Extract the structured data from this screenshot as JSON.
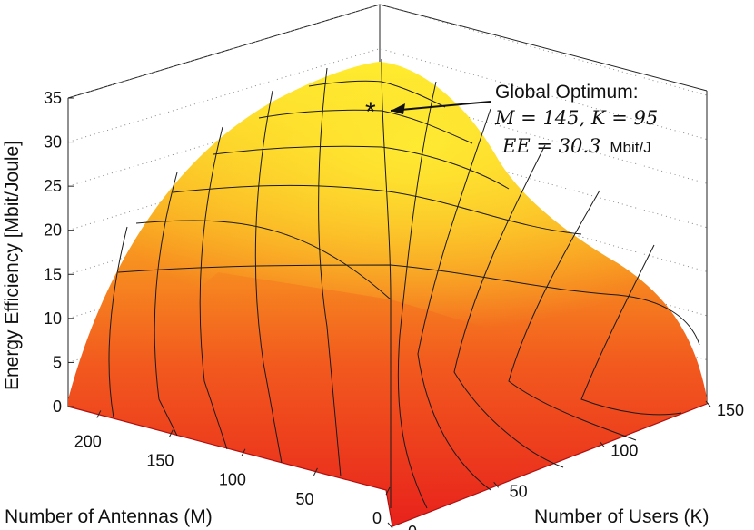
{
  "chart_data": {
    "type": "surface",
    "title": "",
    "xlabel": "Number of Users (K)",
    "ylabel": "Number of Antennas (M)",
    "zlabel": "Energy Efficiency [Mbit/Joule]",
    "xlim": [
      0,
      150
    ],
    "ylim": [
      0,
      220
    ],
    "zlim": [
      0,
      35
    ],
    "x_ticks": [
      "0",
      "50",
      "100",
      "150"
    ],
    "y_ticks": [
      "0",
      "50",
      "100",
      "150",
      "200"
    ],
    "z_ticks": [
      "0",
      "5",
      "10",
      "15",
      "20",
      "25",
      "30",
      "35"
    ],
    "grid": true,
    "colormap": "autumn",
    "surface_samples": {
      "K": [
        0,
        30,
        60,
        95,
        120,
        150
      ],
      "M": [
        0,
        50,
        100,
        145,
        200,
        220
      ],
      "EE": [
        [
          0,
          0,
          0,
          0,
          0,
          0
        ],
        [
          0,
          14,
          15,
          12,
          9,
          6
        ],
        [
          0,
          20,
          25,
          24,
          20,
          14
        ],
        [
          0,
          22,
          29,
          30.3,
          27,
          21
        ],
        [
          0,
          21,
          27,
          28,
          25,
          19
        ],
        [
          0,
          20,
          26,
          27,
          24,
          18
        ]
      ]
    },
    "annotation": {
      "line1": "Global Optimum:",
      "line2": "M = 145, K = 95",
      "line3_main": "EE = 30.3",
      "line3_unit": "Mbit/J",
      "point": {
        "K": 95,
        "M": 145,
        "EE": 30.3
      }
    }
  }
}
